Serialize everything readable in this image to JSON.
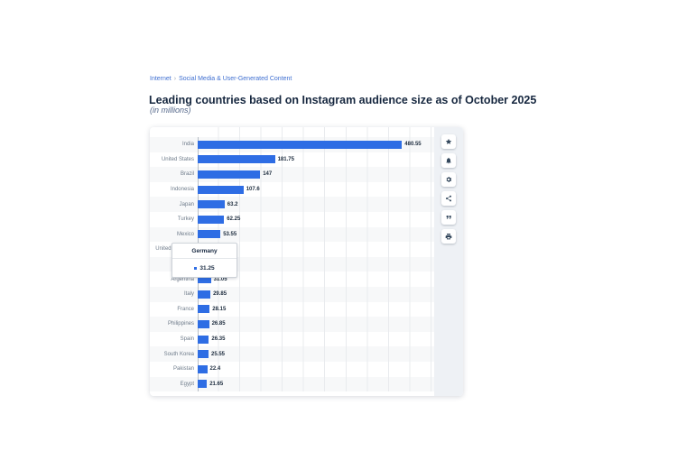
{
  "page": {
    "breadcrumb": {
      "items": [
        "Internet",
        "Social Media & User-Generated Content"
      ],
      "separator": "›"
    },
    "title": "Leading countries based on Instagram audience size as of October 2025",
    "subtitle": "(in millions)"
  },
  "chart_data": {
    "type": "bar",
    "orientation": "horizontal",
    "title": "Leading countries based on Instagram audience size as of October 2025",
    "unit": "millions",
    "xlim": [
      0,
      550
    ],
    "gridline_interval": 50,
    "grid": true,
    "categories": [
      "India",
      "United States",
      "Brazil",
      "Indonesia",
      "Japan",
      "Turkey",
      "Mexico",
      "United Kingdom",
      "Germany",
      "Argentina",
      "Italy",
      "France",
      "Philippines",
      "Spain",
      "South Korea",
      "Pakistan",
      "Egypt"
    ],
    "values": [
      480.55,
      181.75,
      147,
      107.6,
      63.2,
      62.25,
      53.55,
      null,
      31.25,
      31.05,
      29.85,
      28.15,
      26.85,
      26.35,
      25.55,
      22.4,
      21.65
    ],
    "rows": [
      {
        "label": "India",
        "value": 480.55,
        "value_label": "480.55"
      },
      {
        "label": "United States",
        "value": 181.75,
        "value_label": "181.75"
      },
      {
        "label": "Brazil",
        "value": 147,
        "value_label": "147"
      },
      {
        "label": "Indonesia",
        "value": 107.6,
        "value_label": "107.6"
      },
      {
        "label": "Japan",
        "value": 63.2,
        "value_label": "63.2"
      },
      {
        "label": "Turkey",
        "value": 62.25,
        "value_label": "62.25"
      },
      {
        "label": "Mexico",
        "value": 53.55,
        "value_label": "53.55"
      },
      {
        "label": "United Kingdom",
        "value": null,
        "value_label": ""
      },
      {
        "label": "Germany",
        "value": 31.25,
        "value_label": ""
      },
      {
        "label": "Argentina",
        "value": 31.05,
        "value_label": "31.05"
      },
      {
        "label": "Italy",
        "value": 29.85,
        "value_label": "29.85"
      },
      {
        "label": "France",
        "value": 28.15,
        "value_label": "28.15"
      },
      {
        "label": "Philippines",
        "value": 26.85,
        "value_label": "26.85"
      },
      {
        "label": "Spain",
        "value": 26.35,
        "value_label": "26.35"
      },
      {
        "label": "South Korea",
        "value": 25.55,
        "value_label": "25.55"
      },
      {
        "label": "Pakistan",
        "value": 22.4,
        "value_label": "22.4"
      },
      {
        "label": "Egypt",
        "value": 21.65,
        "value_label": "21.65"
      }
    ]
  },
  "tooltip": {
    "title": "Germany",
    "value": "31.25"
  },
  "toolbar": {
    "buttons": [
      "favorite-star-icon",
      "alert-bell-icon",
      "settings-gear-icon",
      "share-icon",
      "cite-quote-icon",
      "print-icon"
    ]
  },
  "colors": {
    "bar": "#2e6de4",
    "accent": "#3f6fd1",
    "title": "#16273f",
    "stripe": "#f7f8f9",
    "grid": "#e9ebee",
    "rail": "#eef1f5",
    "icon": "#33475c"
  }
}
